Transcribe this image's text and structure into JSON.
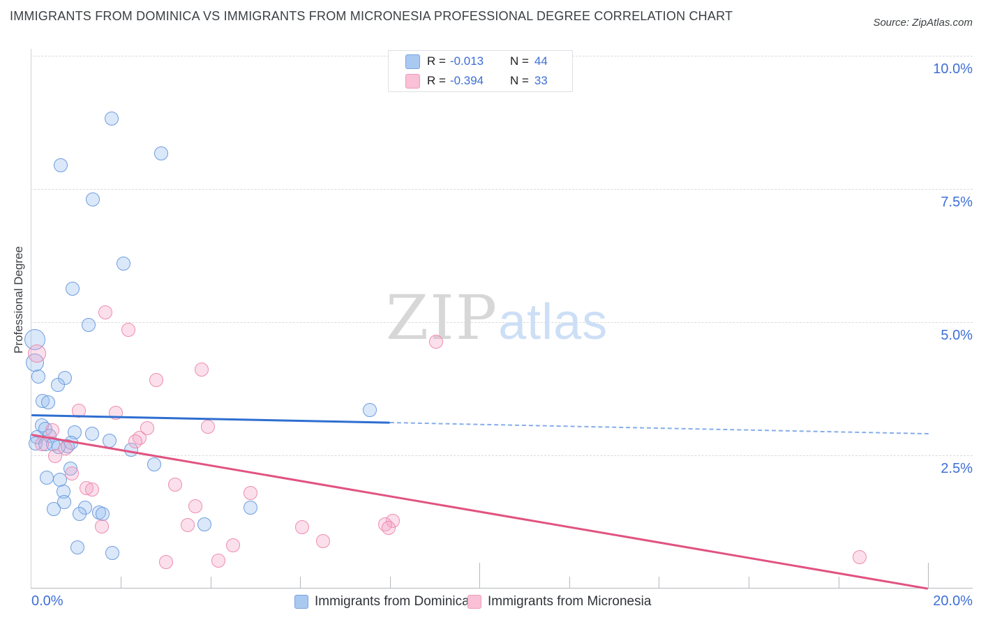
{
  "header": {
    "title": "IMMIGRANTS FROM DOMINICA VS IMMIGRANTS FROM MICRONESIA PROFESSIONAL DEGREE CORRELATION CHART",
    "source": "Source: ZipAtlas.com"
  },
  "watermark": {
    "part1": "ZIP",
    "part2": "atlas"
  },
  "stats_box": {
    "rows": [
      {
        "r_label": "R =",
        "r_value": "-0.013",
        "n_label": "N =",
        "n_value": "44"
      },
      {
        "r_label": "R =",
        "r_value": "-0.394",
        "n_label": "N =",
        "n_value": "33"
      }
    ]
  },
  "axes": {
    "y_title": "Professional Degree",
    "x_min_label": "0.0%",
    "x_max_label": "20.0%",
    "label_color": "#3d6fd6"
  },
  "bottom_legend": [
    {
      "label": "Immigrants from Dominica"
    },
    {
      "label": "Immigrants from Micronesia"
    }
  ],
  "colors": {
    "blue_marker_fill": "rgba(150,190,240,0.35)",
    "blue_marker_stroke": "#6f9ddd",
    "pink_marker_fill": "rgba(242,160,195,0.32)",
    "pink_marker_stroke": "#ee8caf",
    "blue_trend": "#2e6ed0",
    "blue_trend_dashed": "#85ade8",
    "pink_trend": "#e15380"
  },
  "chart_data": {
    "type": "scatter",
    "title": "Immigrants from Dominica vs Immigrants from Micronesia Professional Degree Correlation Chart",
    "xlabel": "",
    "ylabel": "Professional Degree",
    "xlim": [
      0,
      20
    ],
    "ylim": [
      0,
      10.5
    ],
    "x_axis_unit": "%",
    "y_axis_unit": "%",
    "x_minor_ticks": [
      2,
      4,
      6,
      8,
      12,
      14,
      16,
      18
    ],
    "x_major_ticks": [
      10,
      20
    ],
    "y_gridlines": [
      {
        "value": 2.5,
        "label": "2.5%"
      },
      {
        "value": 5.0,
        "label": "5.0%"
      },
      {
        "value": 7.5,
        "label": "7.5%"
      },
      {
        "value": 10.0,
        "label": "10.0%"
      }
    ],
    "legend_position": "bottom",
    "grid": true,
    "series": [
      {
        "name": "Immigrants from Dominica",
        "R": -0.013,
        "N": 44,
        "points": [
          [
            1.79,
            8.82,
            10
          ],
          [
            2.9,
            8.17,
            10
          ],
          [
            0.66,
            7.94,
            10
          ],
          [
            1.37,
            7.3,
            10
          ],
          [
            2.06,
            6.1,
            10
          ],
          [
            0.92,
            5.63,
            10
          ],
          [
            1.28,
            4.95,
            10
          ],
          [
            0.08,
            4.67,
            15
          ],
          [
            0.08,
            4.24,
            13
          ],
          [
            0.16,
            3.98,
            10
          ],
          [
            0.75,
            3.95,
            10
          ],
          [
            0.6,
            3.82,
            10
          ],
          [
            0.25,
            3.52,
            10
          ],
          [
            0.38,
            3.49,
            10
          ],
          [
            0.24,
            3.06,
            10
          ],
          [
            0.32,
            3.0,
            10
          ],
          [
            0.97,
            2.93,
            10
          ],
          [
            1.36,
            2.91,
            10
          ],
          [
            0.41,
            2.87,
            10
          ],
          [
            0.14,
            2.84,
            10
          ],
          [
            1.75,
            2.77,
            10
          ],
          [
            0.89,
            2.74,
            10
          ],
          [
            0.1,
            2.72,
            10
          ],
          [
            0.32,
            2.71,
            10
          ],
          [
            0.49,
            2.71,
            10
          ],
          [
            0.81,
            2.67,
            10
          ],
          [
            0.61,
            2.66,
            10
          ],
          [
            2.24,
            2.6,
            10
          ],
          [
            2.74,
            2.33,
            10
          ],
          [
            0.88,
            2.25,
            10
          ],
          [
            0.35,
            2.08,
            10
          ],
          [
            0.64,
            2.04,
            10
          ],
          [
            0.72,
            1.82,
            10
          ],
          [
            0.74,
            1.62,
            10
          ],
          [
            1.2,
            1.52,
            10
          ],
          [
            4.89,
            1.52,
            10
          ],
          [
            0.5,
            1.49,
            10
          ],
          [
            1.51,
            1.43,
            10
          ],
          [
            1.08,
            1.4,
            10
          ],
          [
            1.59,
            1.4,
            10
          ],
          [
            3.86,
            1.2,
            10
          ],
          [
            1.03,
            0.77,
            10
          ],
          [
            1.82,
            0.67,
            10
          ],
          [
            7.55,
            3.35,
            10
          ]
        ]
      },
      {
        "name": "Immigrants from Micronesia",
        "R": -0.394,
        "N": 33,
        "points": [
          [
            1.65,
            5.18,
            10
          ],
          [
            2.17,
            4.86,
            10
          ],
          [
            0.14,
            4.41,
            13
          ],
          [
            9.03,
            4.63,
            10
          ],
          [
            3.8,
            4.11,
            10
          ],
          [
            2.8,
            3.91,
            10
          ],
          [
            1.06,
            3.34,
            10
          ],
          [
            1.89,
            3.3,
            10
          ],
          [
            3.95,
            3.04,
            10
          ],
          [
            2.59,
            3.01,
            10
          ],
          [
            0.47,
            2.97,
            10
          ],
          [
            2.42,
            2.83,
            10
          ],
          [
            2.32,
            2.76,
            10
          ],
          [
            0.24,
            2.71,
            10
          ],
          [
            0.77,
            2.63,
            10
          ],
          [
            0.53,
            2.49,
            10
          ],
          [
            0.91,
            2.16,
            10
          ],
          [
            3.22,
            1.95,
            10
          ],
          [
            1.23,
            1.88,
            10
          ],
          [
            1.36,
            1.86,
            10
          ],
          [
            4.89,
            1.79,
            10
          ],
          [
            3.67,
            1.54,
            10
          ],
          [
            3.5,
            1.19,
            10
          ],
          [
            1.58,
            1.17,
            10
          ],
          [
            6.05,
            1.15,
            10
          ],
          [
            8.06,
            1.27,
            10
          ],
          [
            7.9,
            1.2,
            10
          ],
          [
            7.98,
            1.14,
            10
          ],
          [
            6.51,
            0.89,
            10
          ],
          [
            4.51,
            0.81,
            10
          ],
          [
            4.17,
            0.52,
            10
          ],
          [
            3.01,
            0.5,
            10
          ],
          [
            18.47,
            0.59,
            10
          ]
        ]
      }
    ],
    "trend_lines": [
      {
        "series": "Immigrants from Dominica",
        "segments": [
          {
            "from": [
              0,
              3.27
            ],
            "to": [
              8.0,
              3.13
            ],
            "style": "solid"
          },
          {
            "from": [
              8.0,
              3.13
            ],
            "to": [
              20,
              2.92
            ],
            "style": "dashed"
          }
        ]
      },
      {
        "series": "Immigrants from Micronesia",
        "segments": [
          {
            "from": [
              0,
              2.91
            ],
            "to": [
              20,
              0.02
            ],
            "style": "solid"
          }
        ]
      }
    ]
  }
}
